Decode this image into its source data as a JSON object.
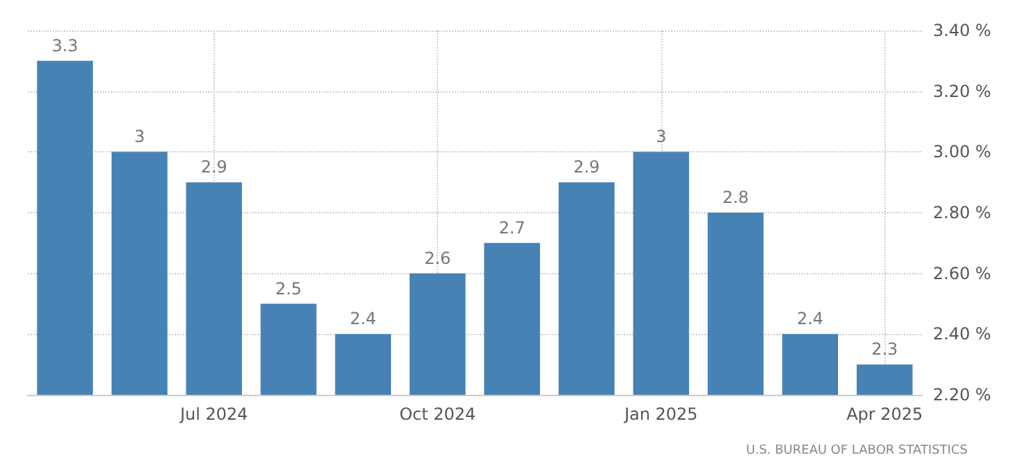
{
  "chart_data": {
    "type": "bar",
    "categories": [
      null,
      null,
      "Jul 2024",
      null,
      null,
      "Oct 2024",
      null,
      null,
      "Jan 2025",
      null,
      null,
      "Apr 2025"
    ],
    "values": [
      3.3,
      3,
      2.9,
      2.5,
      2.4,
      2.6,
      2.7,
      2.9,
      3,
      2.8,
      2.4,
      2.3
    ],
    "color": "#4682b4",
    "ylim": [
      2.2,
      3.4
    ],
    "yticks": [
      {
        "value": 2.2,
        "label": "2.20 %"
      },
      {
        "value": 2.4,
        "label": "2.40 %"
      },
      {
        "value": 2.6,
        "label": "2.60 %"
      },
      {
        "value": 2.8,
        "label": "2.80 %"
      },
      {
        "value": 3.0,
        "label": "3.00 %"
      },
      {
        "value": 3.2,
        "label": "3.20 %"
      },
      {
        "value": 3.4,
        "label": "3.40 %"
      }
    ],
    "grid": true,
    "data_labels": true,
    "annotations": [
      "U.S. BUREAU OF LABOR STATISTICS"
    ]
  }
}
